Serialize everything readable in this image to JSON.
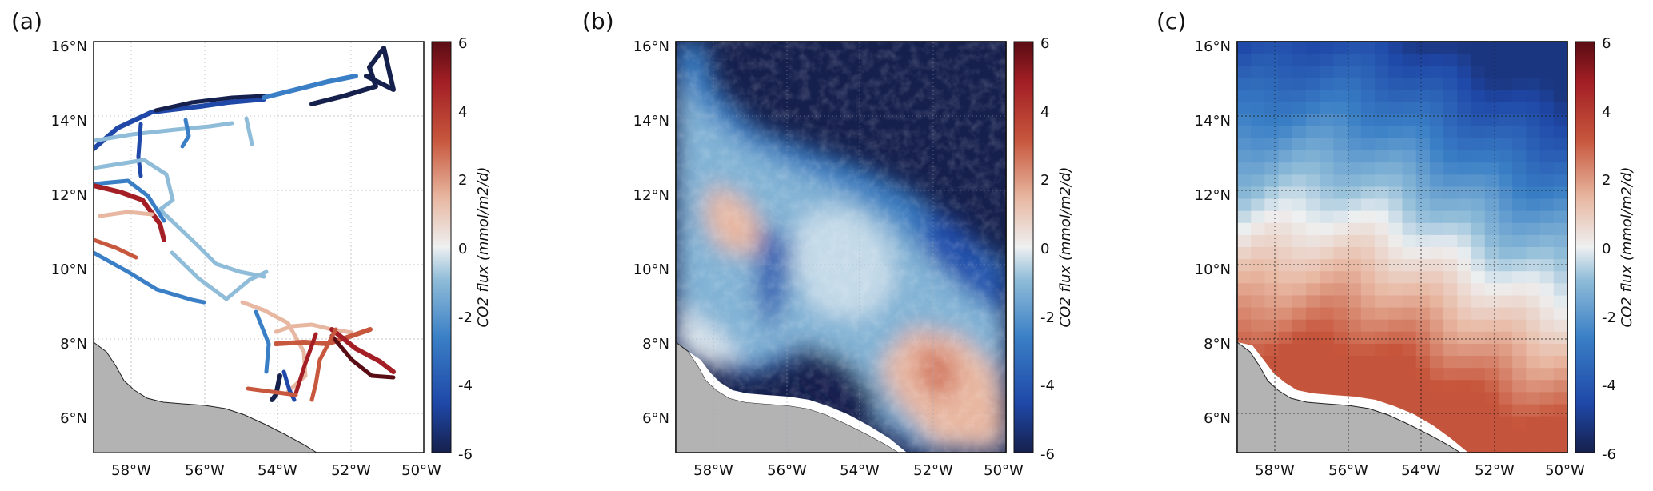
{
  "panels": [
    {
      "label": "(a)",
      "x_ticks": [
        "58°W",
        "56°W",
        "54°W",
        "52°W",
        "50°W"
      ],
      "y_ticks": [
        "16°N",
        "14°N",
        "12°N",
        "10°N",
        "8°N",
        "6°N"
      ],
      "colorbar_ticks": [
        "6",
        "4",
        "2",
        "0",
        "-2",
        "-4",
        "-6"
      ],
      "colorbar_label": "CO2 flux (mmol/m2/d)",
      "content": "ship tracks"
    },
    {
      "label": "(b)",
      "x_ticks": [
        "58°W",
        "56°W",
        "54°W",
        "52°W",
        "50°W"
      ],
      "y_ticks": [
        "16°N",
        "14°N",
        "12°N",
        "10°N",
        "8°N",
        "6°N"
      ],
      "colorbar_ticks": [
        "6",
        "4",
        "2",
        "0",
        "-2",
        "-4",
        "-6"
      ],
      "colorbar_label": "CO2 flux (mmol/m2/d)",
      "content": "high-resolution field"
    },
    {
      "label": "(c)",
      "x_ticks": [
        "58°W",
        "56°W",
        "54°W",
        "52°W",
        "50°W"
      ],
      "y_ticks": [
        "16°N",
        "14°N",
        "12°N",
        "10°N",
        "8°N",
        "6°N"
      ],
      "colorbar_ticks": [
        "6",
        "4",
        "2",
        "0",
        "-2",
        "-4",
        "-6"
      ],
      "colorbar_label": "CO2 flux (mmol/m2/d)",
      "content": "gridded field"
    }
  ],
  "colors": {
    "land": "#b3b3b3",
    "grid": "#bfbfbf",
    "colormap": [
      "#16204d",
      "#1f48a8",
      "#3a7fc6",
      "#8fbcd8",
      "#eef0f1",
      "#e8b7a1",
      "#c7573d",
      "#a31f25",
      "#5a0c14"
    ]
  }
}
